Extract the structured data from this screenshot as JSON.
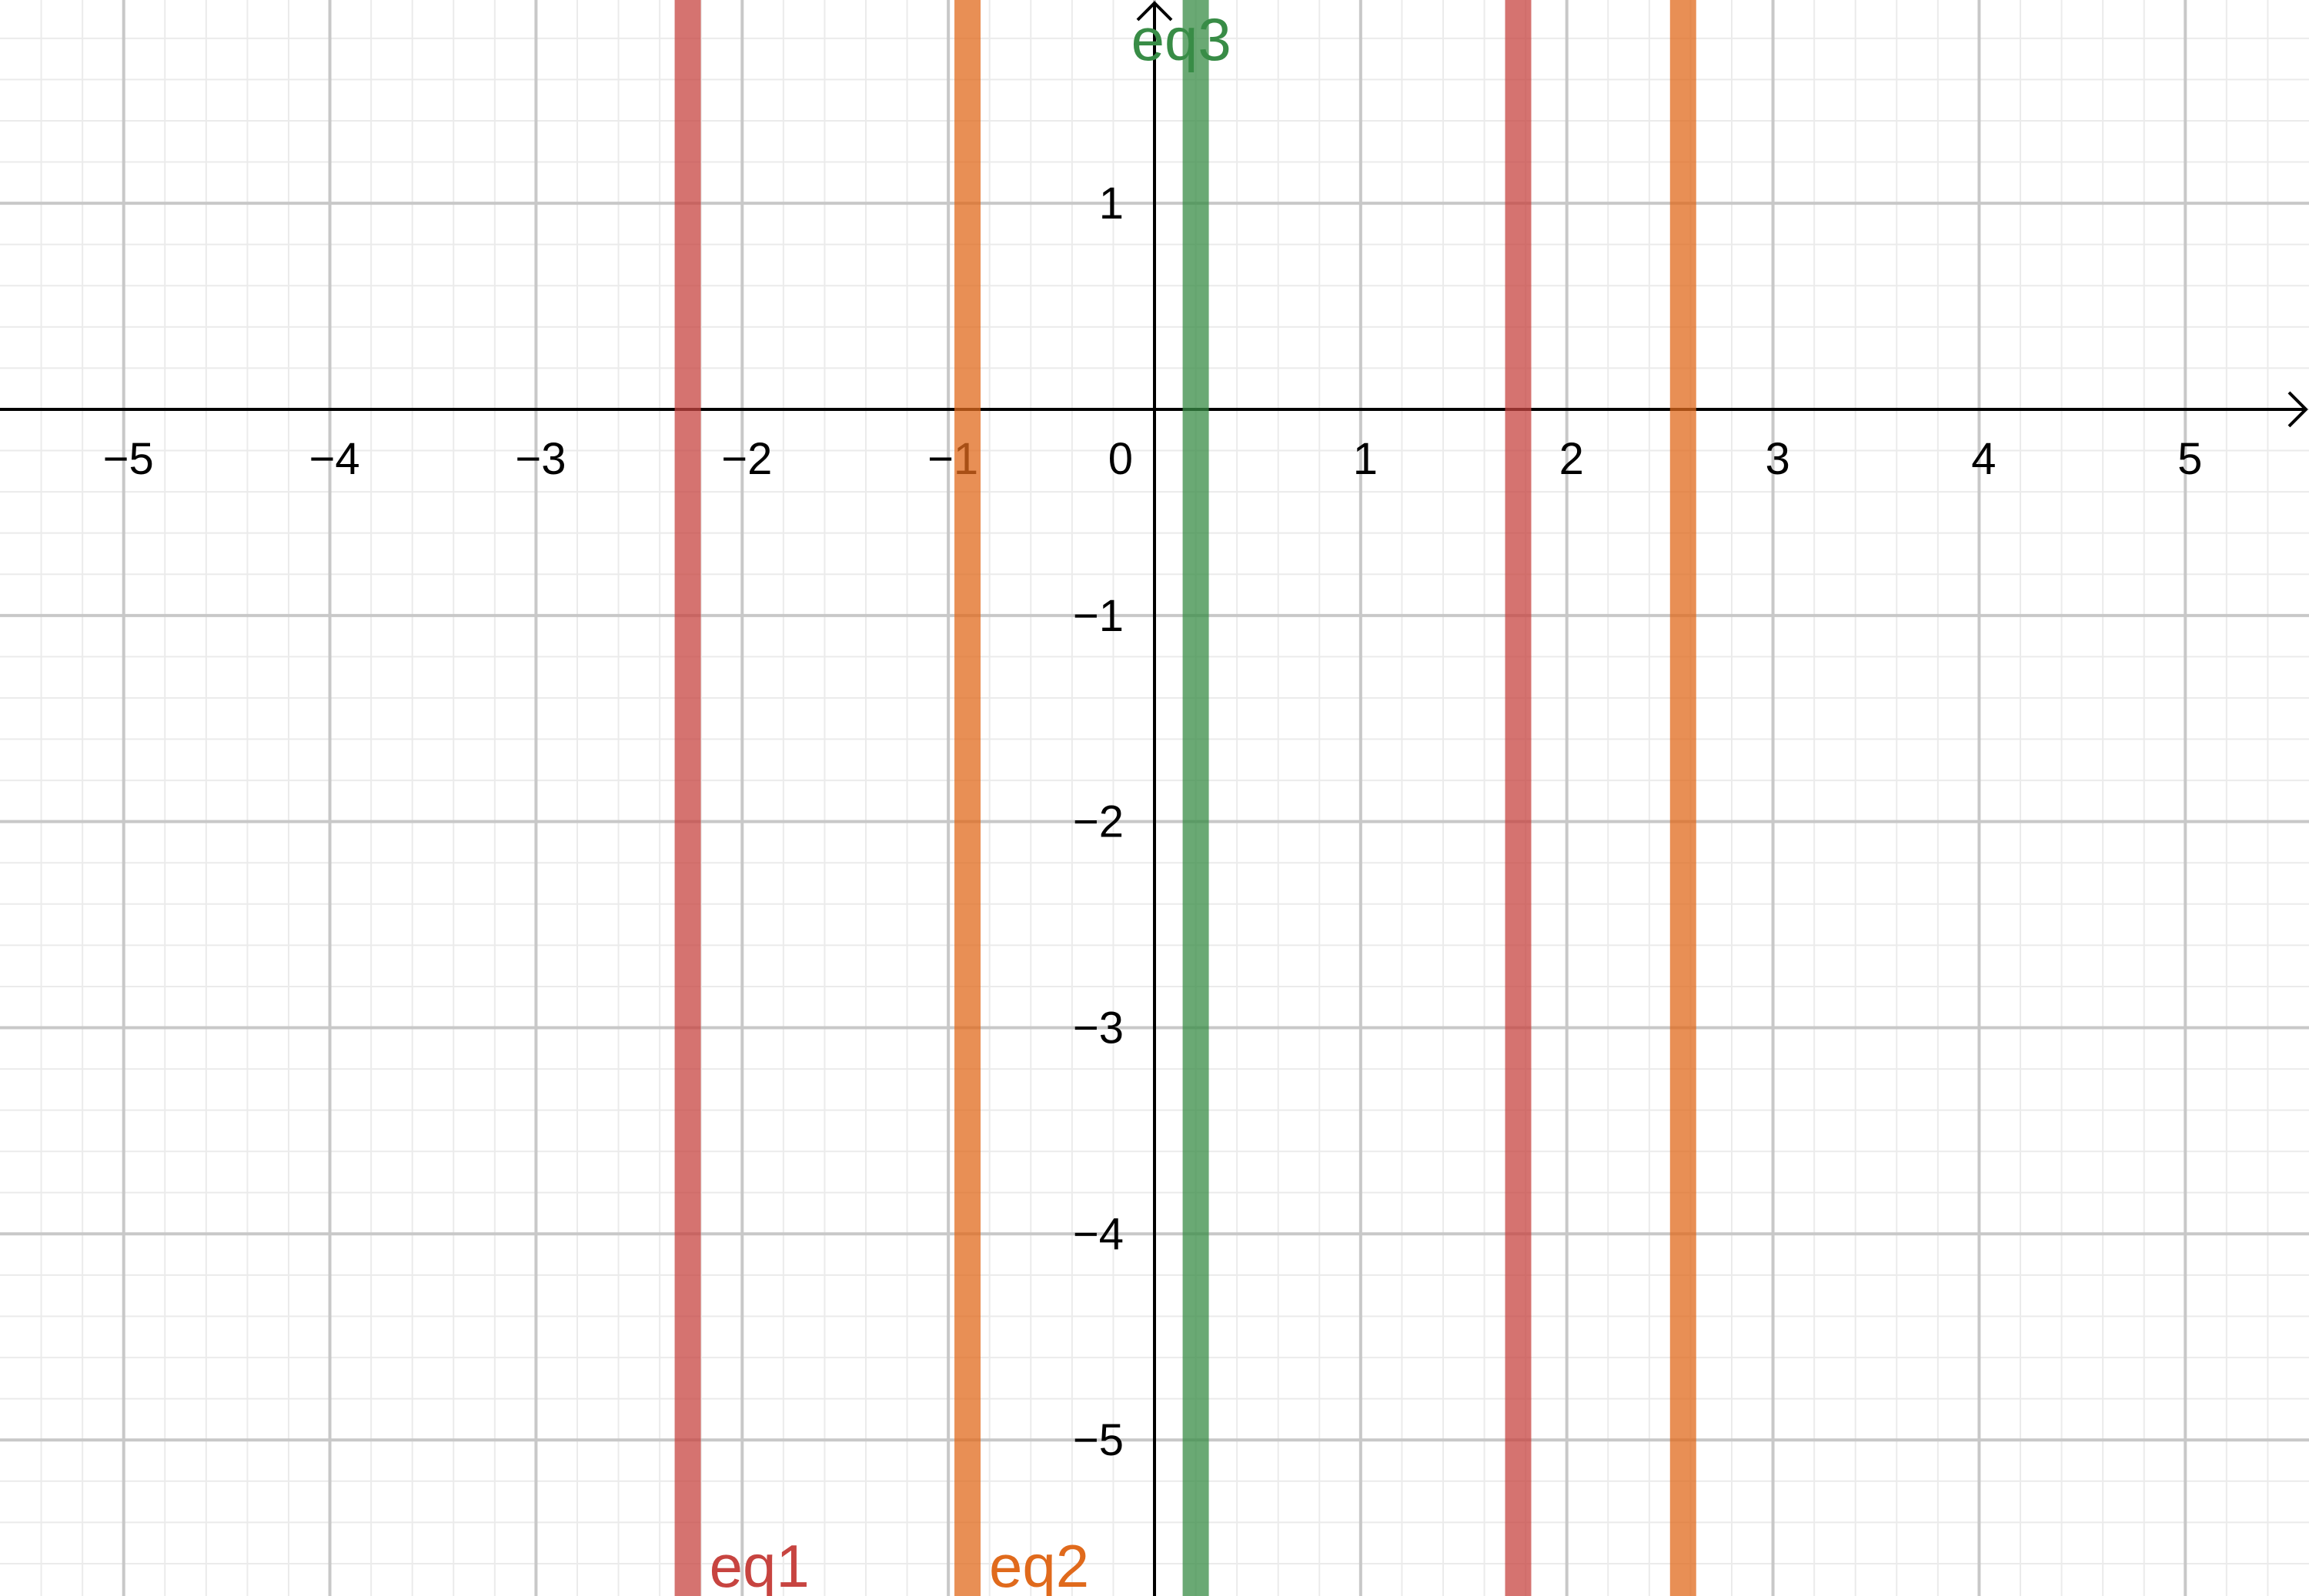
{
  "chart_data": {
    "type": "vline",
    "series": [
      {
        "name": "eq1",
        "color": "#c74440",
        "x": [
          -2.264,
          1.764
        ]
      },
      {
        "name": "eq2",
        "color": "#e06a1c",
        "x": [
          -0.907,
          2.564
        ]
      },
      {
        "name": "eq3",
        "color": "#388c46",
        "x": [
          0.2
        ]
      }
    ],
    "xlim": [
      -5.6,
      5.6
    ],
    "ylim": [
      -5.757,
      1.986
    ],
    "xticks": [
      {
        "value": -5,
        "label": "−5"
      },
      {
        "value": -4,
        "label": "−4"
      },
      {
        "value": -3,
        "label": "−3"
      },
      {
        "value": -2,
        "label": "−2"
      },
      {
        "value": -1,
        "label": "−1"
      },
      0,
      1,
      2,
      3,
      4,
      5
    ],
    "yticks": [
      {
        "value": -5,
        "label": "−5"
      },
      {
        "value": -4,
        "label": "−4"
      },
      {
        "value": -3,
        "label": "−3"
      },
      {
        "value": -2,
        "label": "−2"
      },
      {
        "value": -1,
        "label": "−1"
      },
      1
    ],
    "grid": true,
    "minor_grid_step": 0.2
  }
}
